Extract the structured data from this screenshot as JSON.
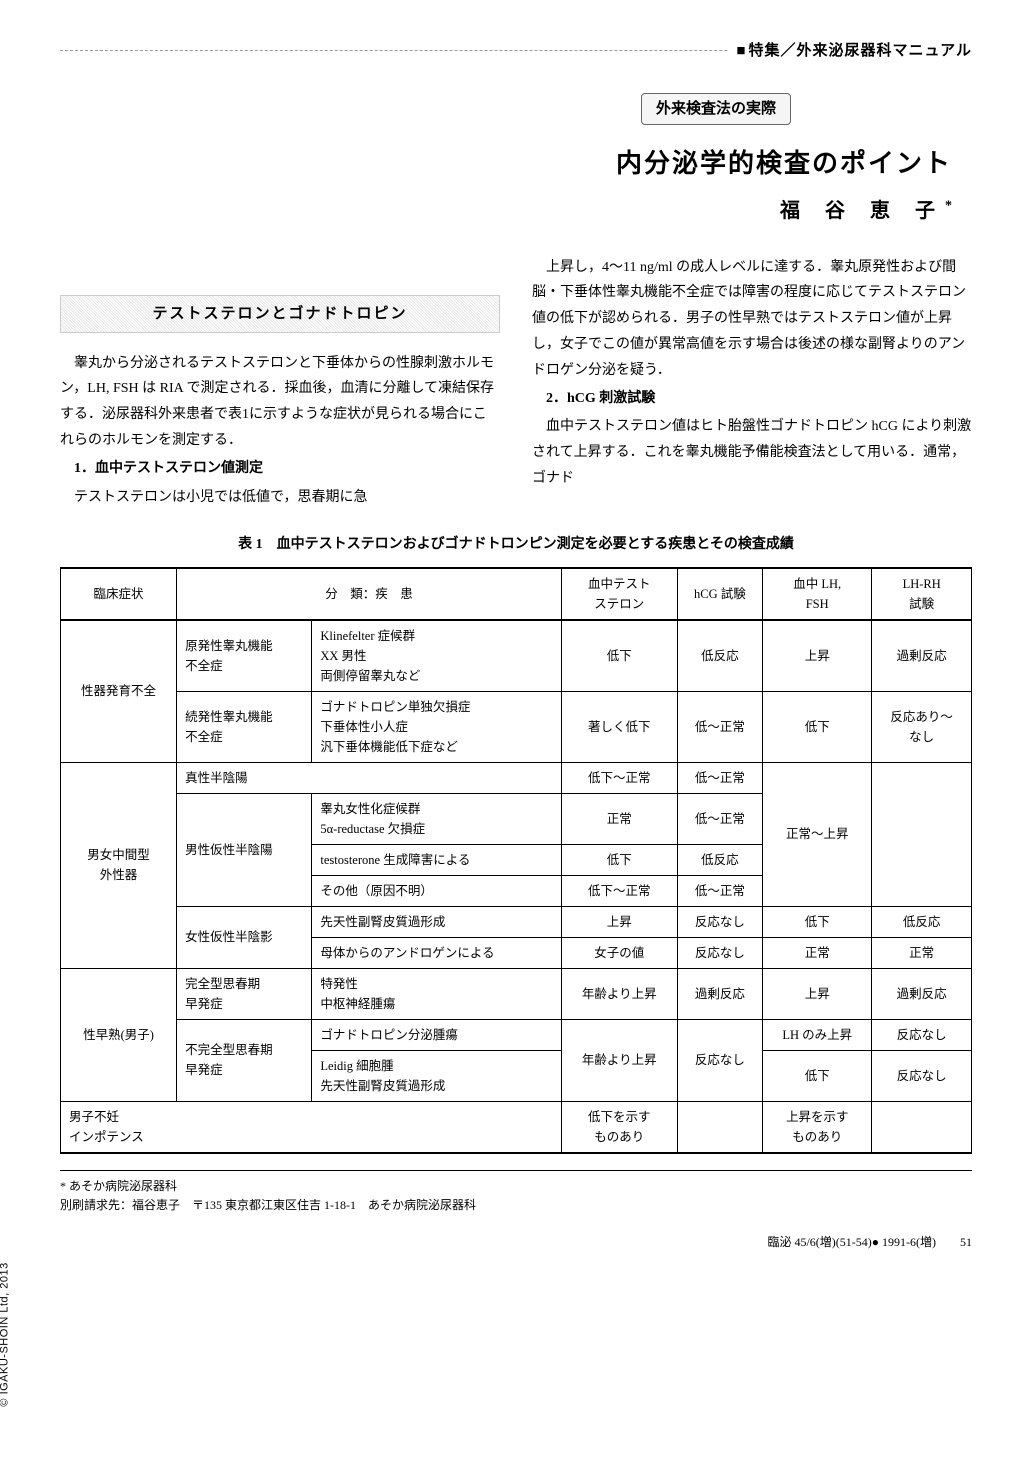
{
  "header": {
    "series_label": "特集／外来泌尿器科マニュアル",
    "subtitle_box": "外来検査法の実際",
    "main_title": "内分泌学的検査のポイント",
    "author_name": "福 谷 恵 子",
    "author_mark": "*"
  },
  "left_column": {
    "section_heading": "テストステロンとゴナドトロピン",
    "para1": "睾丸から分泌されるテストステロンと下垂体からの性腺刺激ホルモン，LH, FSH は RIA で測定される．採血後，血清に分離して凍結保存する．泌尿器科外来患者で表1に示すような症状が見られる場合にこれらのホルモンを測定する．",
    "sub1_title": "1．血中テストステロン値測定",
    "sub1_text": "テストステロンは小児では低値で，思春期に急"
  },
  "right_column": {
    "para1": "上昇し，4〜11 ng/ml の成人レベルに達する．睾丸原発性および間脳・下垂体性睾丸機能不全症では障害の程度に応じてテストステロン値の低下が認められる．男子の性早熟ではテストステロン値が上昇し，女子でこの値が異常高値を示す場合は後述の様な副腎よりのアンドロゲン分泌を疑う．",
    "sub2_title": "2．hCG 刺激試験",
    "sub2_text": "血中テストステロン値はヒト胎盤性ゴナドトロピン hCG により刺激されて上昇する．これを睾丸機能予備能検査法として用いる．通常，ゴナド"
  },
  "table": {
    "caption": "表 1　血中テストステロンおよびゴナドトロンピン測定を必要とする疾患とその検査成績",
    "columns": [
      "臨床症状",
      "分　類：疾　患",
      "",
      "血中テスト\nステロン",
      "hCG 試験",
      "血中 LH,\nFSH",
      "LH-RH\n試験"
    ],
    "rows": [
      {
        "c0": "性器発育不全",
        "c0_rowspan": 2,
        "c1": "原発性睾丸機能\n不全症",
        "c2": "Klinefelter 症候群\nXX 男性\n両側停留睾丸など",
        "c3": "低下",
        "c4": "低反応",
        "c5": "上昇",
        "c6": "過剰反応"
      },
      {
        "c1": "続発性睾丸機能\n不全症",
        "c2": "ゴナドトロピン単独欠損症\n下垂体性小人症\n汎下垂体機能低下症など",
        "c3": "著しく低下",
        "c4": "低〜正常",
        "c5": "低下",
        "c6": "反応あり〜\nなし"
      },
      {
        "c0": "男女中間型\n外性器",
        "c0_rowspan": 5,
        "c1": "真性半陰陽",
        "c1_colspan": 2,
        "c3": "低下〜正常",
        "c4": "低〜正常",
        "c5": "正常〜上昇",
        "c5_rowspan": 4,
        "c6": "",
        "c6_rowspan": 4
      },
      {
        "c1": "男性仮性半陰陽",
        "c1_rowspan": 3,
        "c2": "睾丸女性化症候群\n5α-reductase 欠損症",
        "c3": "正常",
        "c4": "低〜正常"
      },
      {
        "c2": "testosterone 生成障害による",
        "c3": "低下",
        "c4": "低反応"
      },
      {
        "c2": "その他（原因不明）",
        "c3": "低下〜正常",
        "c4": "低〜正常"
      },
      {
        "c1": "女性仮性半陰影",
        "c1_rowspan": 2,
        "c2": "先天性副腎皮質過形成",
        "c3": "上昇",
        "c4": "反応なし",
        "c5": "低下",
        "c6": "低反応"
      },
      {
        "c0": "",
        "c2": "母体からのアンドロゲンによる",
        "c3": "女子の値",
        "c4": "反応なし",
        "c5": "正常",
        "c6": "正常"
      },
      {
        "c0": "性早熟(男子)",
        "c0_rowspan": 3,
        "c1": "完全型思春期\n早発症",
        "c2": "特発性\n中枢神経腫瘍",
        "c3": "年齢より上昇",
        "c4": "過剰反応",
        "c5": "上昇",
        "c6": "過剰反応"
      },
      {
        "c1": "不完全型思春期\n早発症",
        "c1_rowspan": 2,
        "c2": "ゴナドトロピン分泌腫瘍",
        "c3": "年齢より上昇",
        "c3_rowspan": 2,
        "c4": "反応なし",
        "c4_rowspan": 2,
        "c5": "LH のみ上昇",
        "c6": "反応なし"
      },
      {
        "c2": "Leidig 細胞腫\n先天性副腎皮質過形成",
        "c5": "低下",
        "c6": "反応なし"
      },
      {
        "c0": "男子不妊\nインポテンス",
        "c0_colspan": 3,
        "c3": "低下を示す\nものあり",
        "c4": "",
        "c5": "上昇を示す\nものあり",
        "c6": ""
      }
    ]
  },
  "footnote": {
    "line1": "* あそか病院泌尿器科",
    "line2": "別刷請求先：福谷恵子　〒135 東京都江東区住吉 1-18-1　あそか病院泌尿器科"
  },
  "sidebar": "© IGAKU-SHOIN Ltd, 2013",
  "page_footer": "臨泌 45/6(増)(51-54)● 1991-6(増)　　51"
}
